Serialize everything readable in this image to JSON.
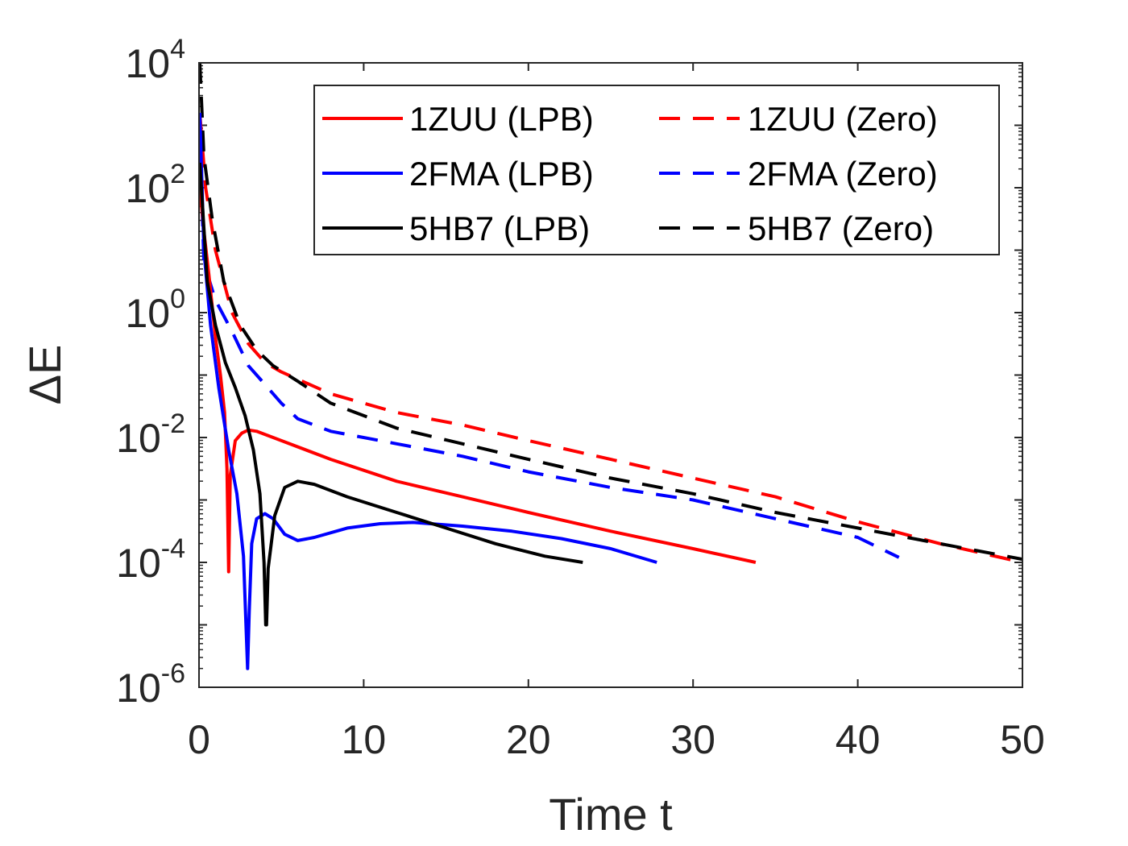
{
  "chart_data": {
    "type": "line",
    "xlabel": "Time t",
    "ylabel": "ΔE",
    "xlim": [
      0,
      50
    ],
    "ylim_log10": [
      -6,
      4
    ],
    "yscale": "log",
    "x_ticks": [
      0,
      10,
      20,
      30,
      40,
      50
    ],
    "x_tick_labels": [
      "0",
      "10",
      "20",
      "30",
      "40",
      "50"
    ],
    "y_ticks_log10": [
      -6,
      -4,
      -2,
      0,
      2,
      4
    ],
    "y_tick_labels": [
      {
        "base": "10",
        "exp": "-6"
      },
      {
        "base": "10",
        "exp": "-4"
      },
      {
        "base": "10",
        "exp": "-2"
      },
      {
        "base": "10",
        "exp": "0"
      },
      {
        "base": "10",
        "exp": "2"
      },
      {
        "base": "10",
        "exp": "4"
      }
    ],
    "legend_position": "top-right",
    "series": [
      {
        "name": "1ZUU (LPB)",
        "color": "#ff0000",
        "dash": "solid",
        "points": [
          [
            0.05,
            2.0
          ],
          [
            0.3,
            1.3
          ],
          [
            0.6,
            0.6
          ],
          [
            1.0,
            -0.4
          ],
          [
            1.3,
            -1.0
          ],
          [
            1.55,
            -1.6
          ],
          [
            1.7,
            -2.5
          ],
          [
            1.8,
            -4.15
          ],
          [
            1.9,
            -2.6
          ],
          [
            2.2,
            -2.05
          ],
          [
            2.6,
            -1.93
          ],
          [
            3.0,
            -1.88
          ],
          [
            3.5,
            -1.9
          ],
          [
            5,
            -2.05
          ],
          [
            8,
            -2.35
          ],
          [
            12,
            -2.7
          ],
          [
            16,
            -2.95
          ],
          [
            20,
            -3.2
          ],
          [
            25,
            -3.5
          ],
          [
            30,
            -3.78
          ],
          [
            33.8,
            -4.0
          ]
        ]
      },
      {
        "name": "1ZUU (Zero)",
        "color": "#ff0000",
        "dash": "dashed",
        "points": [
          [
            0.05,
            3.2
          ],
          [
            0.4,
            2.0
          ],
          [
            1.0,
            1.0
          ],
          [
            2.0,
            0.0
          ],
          [
            3.0,
            -0.5
          ],
          [
            4.0,
            -0.8
          ],
          [
            5,
            -0.95
          ],
          [
            8,
            -1.3
          ],
          [
            12,
            -1.6
          ],
          [
            16,
            -1.8
          ],
          [
            20,
            -2.05
          ],
          [
            25,
            -2.35
          ],
          [
            30,
            -2.65
          ],
          [
            35,
            -2.95
          ],
          [
            40,
            -3.35
          ],
          [
            45,
            -3.7
          ],
          [
            50,
            -4.0
          ]
        ]
      },
      {
        "name": "2FMA (LPB)",
        "color": "#0000ff",
        "dash": "solid",
        "points": [
          [
            0.05,
            3.2
          ],
          [
            0.3,
            1.0
          ],
          [
            0.7,
            -0.2
          ],
          [
            1.2,
            -1.2
          ],
          [
            1.8,
            -2.2
          ],
          [
            2.3,
            -2.9
          ],
          [
            2.7,
            -3.9
          ],
          [
            2.85,
            -5.0
          ],
          [
            2.95,
            -5.7
          ],
          [
            3.05,
            -4.8
          ],
          [
            3.2,
            -3.7
          ],
          [
            3.5,
            -3.3
          ],
          [
            4.0,
            -3.22
          ],
          [
            4.5,
            -3.3
          ],
          [
            5.2,
            -3.55
          ],
          [
            6.0,
            -3.65
          ],
          [
            7.0,
            -3.6
          ],
          [
            9.0,
            -3.45
          ],
          [
            11,
            -3.38
          ],
          [
            13,
            -3.36
          ],
          [
            16,
            -3.42
          ],
          [
            19,
            -3.5
          ],
          [
            22,
            -3.62
          ],
          [
            25,
            -3.78
          ],
          [
            27.8,
            -4.0
          ]
        ]
      },
      {
        "name": "2FMA (Zero)",
        "color": "#0000ff",
        "dash": "dashed",
        "points": [
          [
            0.05,
            2.8
          ],
          [
            0.3,
            0.8
          ],
          [
            1.0,
            0.2
          ],
          [
            2.0,
            -0.3
          ],
          [
            3.0,
            -0.85
          ],
          [
            4.0,
            -1.15
          ],
          [
            5,
            -1.45
          ],
          [
            6,
            -1.7
          ],
          [
            8,
            -1.9
          ],
          [
            12,
            -2.1
          ],
          [
            16,
            -2.3
          ],
          [
            20,
            -2.55
          ],
          [
            25,
            -2.8
          ],
          [
            30,
            -3.0
          ],
          [
            35,
            -3.3
          ],
          [
            40,
            -3.6
          ],
          [
            42.5,
            -3.92
          ]
        ]
      },
      {
        "name": "5HB7 (LPB)",
        "color": "#000000",
        "dash": "solid",
        "points": [
          [
            0.05,
            2.4
          ],
          [
            0.5,
            0.5
          ],
          [
            1.0,
            -0.2
          ],
          [
            1.6,
            -0.8
          ],
          [
            2.2,
            -1.2
          ],
          [
            2.8,
            -1.65
          ],
          [
            3.3,
            -2.2
          ],
          [
            3.7,
            -2.9
          ],
          [
            3.95,
            -4.0
          ],
          [
            4.05,
            -5.0
          ],
          [
            4.1,
            -5.0
          ],
          [
            4.2,
            -4.1
          ],
          [
            4.6,
            -3.25
          ],
          [
            5.2,
            -2.8
          ],
          [
            6.0,
            -2.7
          ],
          [
            7.0,
            -2.75
          ],
          [
            9,
            -2.95
          ],
          [
            12,
            -3.2
          ],
          [
            15,
            -3.45
          ],
          [
            18,
            -3.7
          ],
          [
            21,
            -3.9
          ],
          [
            23.3,
            -4.0
          ]
        ]
      },
      {
        "name": "5HB7 (Zero)",
        "color": "#000000",
        "dash": "dashed",
        "points": [
          [
            0.05,
            4.0
          ],
          [
            0.3,
            2.5
          ],
          [
            0.8,
            1.5
          ],
          [
            1.5,
            0.5
          ],
          [
            2.5,
            -0.2
          ],
          [
            3.5,
            -0.6
          ],
          [
            4.5,
            -0.85
          ],
          [
            6,
            -1.1
          ],
          [
            8,
            -1.45
          ],
          [
            12,
            -1.85
          ],
          [
            16,
            -2.1
          ],
          [
            20,
            -2.35
          ],
          [
            25,
            -2.65
          ],
          [
            30,
            -2.9
          ],
          [
            35,
            -3.2
          ],
          [
            40,
            -3.45
          ],
          [
            45,
            -3.7
          ],
          [
            50,
            -3.95
          ]
        ]
      }
    ]
  }
}
